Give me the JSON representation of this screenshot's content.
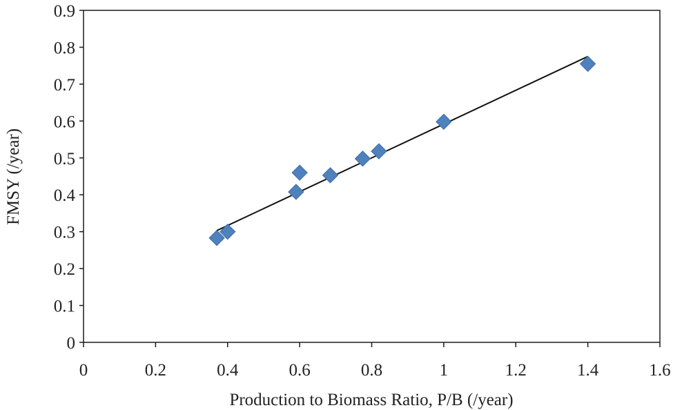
{
  "chart_data": {
    "type": "scatter",
    "title": "",
    "xlabel": "Production to Biomass Ratio, P/B (/year)",
    "ylabel": "FMSY (/year)",
    "xlim": [
      0,
      1.6
    ],
    "ylim": [
      0,
      0.9
    ],
    "xticks": [
      "0",
      "0.2",
      "0.4",
      "0.6",
      "0.8",
      "1",
      "1.2",
      "1.4",
      "1.6"
    ],
    "yticks": [
      "0",
      "0.1",
      "0.2",
      "0.3",
      "0.4",
      "0.5",
      "0.6",
      "0.7",
      "0.8",
      "0.9"
    ],
    "grid": false,
    "legend": "none",
    "series": [
      {
        "marker": "diamond",
        "color": "#4F81BD",
        "points": [
          {
            "x": 0.37,
            "y": 0.283
          },
          {
            "x": 0.4,
            "y": 0.3
          },
          {
            "x": 0.59,
            "y": 0.408
          },
          {
            "x": 0.6,
            "y": 0.46
          },
          {
            "x": 0.685,
            "y": 0.453
          },
          {
            "x": 0.775,
            "y": 0.498
          },
          {
            "x": 0.82,
            "y": 0.518
          },
          {
            "x": 1.0,
            "y": 0.598
          },
          {
            "x": 1.4,
            "y": 0.755
          }
        ]
      }
    ],
    "trendline": {
      "type": "linear",
      "color": "#111111",
      "from": {
        "x": 0.37,
        "y": 0.303
      },
      "to": {
        "x": 1.4,
        "y": 0.775
      }
    }
  }
}
